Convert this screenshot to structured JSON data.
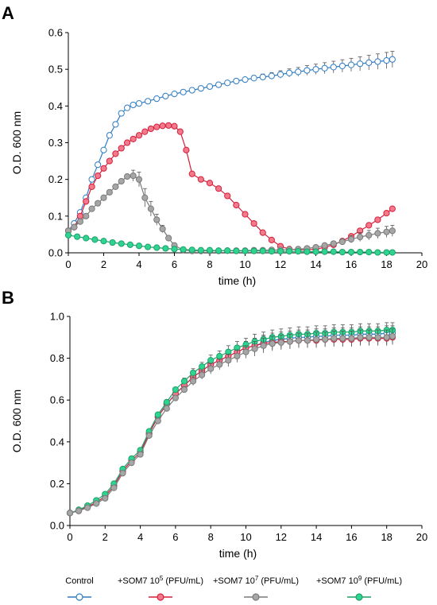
{
  "legend": {
    "items": [
      {
        "label": "Control",
        "series": "control"
      },
      {
        "label": "+SOM7 10",
        "sup": "5",
        "unit": " (PFU/mL)",
        "series": "som7_1e5"
      },
      {
        "label": "+SOM7 10",
        "sup": "7",
        "unit": " (PFU/mL)",
        "series": "som7_1e7"
      },
      {
        "label": "+SOM7 10",
        "sup": "9",
        "unit": " (PFU/mL)",
        "series": "som7_1e9"
      }
    ],
    "placement": "bottom"
  },
  "colors": {
    "control": {
      "stroke": "#2e7bc4",
      "fill": "#ffffff"
    },
    "som7_1e5": {
      "stroke": "#d61f3a",
      "fill": "#f27a8c"
    },
    "som7_1e7": {
      "stroke": "#7a7a7a",
      "fill": "#a6a6a6"
    },
    "som7_1e9": {
      "stroke": "#1ea06a",
      "fill": "#2ed48f"
    }
  },
  "chart_data": [
    {
      "panel": "A",
      "type": "line",
      "xlabel": "time (h)",
      "ylabel": "O.D. 600 nm",
      "xlim": [
        0,
        20
      ],
      "ylim": [
        0,
        0.6
      ],
      "xticks": [
        0,
        2,
        4,
        6,
        8,
        10,
        12,
        14,
        16,
        18,
        20
      ],
      "yticks": [
        0.0,
        0.1,
        0.2,
        0.3,
        0.4,
        0.5,
        0.6
      ],
      "ytick_labels": [
        "0.0",
        "0.1",
        "0.2",
        "0.3",
        "0.4",
        "0.5",
        "0.6"
      ],
      "grid": false,
      "series": [
        {
          "key": "control",
          "x": [
            0,
            0.33,
            0.67,
            1,
            1.33,
            1.67,
            2,
            2.33,
            2.67,
            3,
            3.33,
            3.67,
            4,
            4.5,
            5,
            5.5,
            6,
            6.5,
            7,
            7.5,
            8,
            8.5,
            9,
            9.5,
            10,
            10.5,
            11,
            11.5,
            12,
            12.5,
            13,
            13.5,
            14,
            14.5,
            15,
            15.5,
            16,
            16.5,
            17,
            17.5,
            18,
            18.33
          ],
          "y": [
            0.06,
            0.08,
            0.11,
            0.15,
            0.2,
            0.24,
            0.28,
            0.32,
            0.35,
            0.38,
            0.395,
            0.403,
            0.407,
            0.413,
            0.42,
            0.427,
            0.433,
            0.438,
            0.443,
            0.448,
            0.453,
            0.458,
            0.463,
            0.468,
            0.472,
            0.476,
            0.479,
            0.482,
            0.486,
            0.49,
            0.493,
            0.497,
            0.5,
            0.503,
            0.506,
            0.509,
            0.512,
            0.515,
            0.518,
            0.521,
            0.524,
            0.527
          ],
          "err": [
            0,
            0,
            0,
            0,
            0,
            0,
            0,
            0,
            0,
            0,
            0,
            0,
            0,
            0,
            0,
            0,
            0,
            0,
            0,
            0,
            0,
            0,
            0.004,
            0.005,
            0.006,
            0.007,
            0.008,
            0.009,
            0.01,
            0.011,
            0.012,
            0.013,
            0.014,
            0.015,
            0.016,
            0.017,
            0.018,
            0.019,
            0.02,
            0.021,
            0.022,
            0.022
          ]
        },
        {
          "key": "som7_1e5",
          "x": [
            0,
            0.33,
            0.67,
            1,
            1.33,
            1.67,
            2,
            2.33,
            2.67,
            3,
            3.33,
            3.67,
            4,
            4.33,
            4.67,
            5,
            5.33,
            5.67,
            6,
            6.33,
            6.67,
            7,
            7.5,
            8,
            8.5,
            9,
            9.5,
            10,
            10.5,
            11,
            11.5,
            12,
            12.5,
            13,
            13.5,
            14,
            14.5,
            15,
            15.5,
            16,
            16.5,
            17,
            17.5,
            18,
            18.33
          ],
          "y": [
            0.06,
            0.07,
            0.1,
            0.14,
            0.18,
            0.21,
            0.23,
            0.25,
            0.27,
            0.285,
            0.3,
            0.31,
            0.32,
            0.33,
            0.338,
            0.343,
            0.346,
            0.347,
            0.345,
            0.33,
            0.28,
            0.215,
            0.2,
            0.19,
            0.175,
            0.155,
            0.13,
            0.105,
            0.08,
            0.055,
            0.035,
            0.018,
            0.01,
            0.008,
            0.008,
            0.01,
            0.015,
            0.022,
            0.032,
            0.045,
            0.06,
            0.075,
            0.09,
            0.108,
            0.12
          ],
          "err": [
            0,
            0,
            0,
            0,
            0,
            0,
            0,
            0,
            0,
            0,
            0,
            0,
            0,
            0,
            0,
            0,
            0,
            0,
            0,
            0,
            0,
            0,
            0,
            0,
            0,
            0,
            0,
            0,
            0,
            0,
            0,
            0,
            0,
            0,
            0,
            0,
            0,
            0,
            0,
            0,
            0,
            0,
            0,
            0,
            0
          ]
        },
        {
          "key": "som7_1e7",
          "x": [
            0,
            0.33,
            0.67,
            1,
            1.33,
            1.67,
            2,
            2.33,
            2.67,
            3,
            3.33,
            3.67,
            4,
            4.33,
            4.67,
            5,
            5.33,
            5.67,
            6,
            6.5,
            7,
            7.5,
            8,
            8.5,
            9,
            9.5,
            10,
            10.5,
            11,
            11.5,
            12,
            12.5,
            13,
            13.5,
            14,
            14.5,
            15,
            15.5,
            16,
            16.5,
            17,
            17.5,
            18,
            18.33
          ],
          "y": [
            0.06,
            0.07,
            0.085,
            0.1,
            0.12,
            0.135,
            0.15,
            0.165,
            0.18,
            0.195,
            0.208,
            0.21,
            0.2,
            0.15,
            0.12,
            0.09,
            0.065,
            0.04,
            0.02,
            0.008,
            0.005,
            0.005,
            0.005,
            0.005,
            0.006,
            0.006,
            0.006,
            0.007,
            0.007,
            0.008,
            0.008,
            0.009,
            0.01,
            0.012,
            0.015,
            0.02,
            0.025,
            0.03,
            0.037,
            0.043,
            0.048,
            0.053,
            0.057,
            0.06
          ],
          "err": [
            0,
            0,
            0,
            0,
            0,
            0,
            0,
            0,
            0,
            0,
            0,
            0.015,
            0.02,
            0.025,
            0.02,
            0.015,
            0.01,
            0,
            0,
            0,
            0,
            0,
            0,
            0,
            0,
            0,
            0,
            0,
            0,
            0,
            0,
            0,
            0,
            0,
            0,
            0,
            0.006,
            0.008,
            0.01,
            0.012,
            0.013,
            0.014,
            0.015,
            0.015
          ]
        },
        {
          "key": "som7_1e9",
          "x": [
            0,
            0.5,
            1,
            1.5,
            2,
            2.5,
            3,
            3.5,
            4,
            4.5,
            5,
            5.5,
            6,
            6.5,
            7,
            7.5,
            8,
            8.5,
            9,
            9.5,
            10,
            10.5,
            11,
            11.5,
            12,
            12.5,
            13,
            13.5,
            14,
            14.5,
            15,
            15.5,
            16,
            16.5,
            17,
            17.5,
            18,
            18.33
          ],
          "y": [
            0.048,
            0.044,
            0.04,
            0.036,
            0.032,
            0.028,
            0.025,
            0.022,
            0.019,
            0.016,
            0.014,
            0.012,
            0.01,
            0.009,
            0.008,
            0.007,
            0.007,
            0.006,
            0.006,
            0.005,
            0.005,
            0.005,
            0.005,
            0.004,
            0.004,
            0.004,
            0.004,
            0.003,
            0.003,
            0.003,
            0.003,
            0.002,
            0.002,
            0.002,
            0.002,
            0.001,
            0.001,
            0.001
          ],
          "err": [
            0,
            0,
            0,
            0,
            0,
            0,
            0,
            0,
            0,
            0,
            0,
            0,
            0,
            0,
            0,
            0,
            0,
            0,
            0,
            0,
            0,
            0,
            0,
            0,
            0,
            0,
            0,
            0,
            0,
            0,
            0,
            0,
            0,
            0,
            0,
            0,
            0,
            0
          ]
        }
      ]
    },
    {
      "panel": "B",
      "type": "line",
      "xlabel": "time (h)",
      "ylabel": "O.D. 600 nm",
      "xlim": [
        0,
        20
      ],
      "ylim": [
        0,
        1.0
      ],
      "xticks": [
        0,
        2,
        4,
        6,
        8,
        10,
        12,
        14,
        16,
        18,
        20
      ],
      "yticks": [
        0.0,
        0.2,
        0.4,
        0.6,
        0.8,
        1.0
      ],
      "ytick_labels": [
        "0.0",
        "0.2",
        "0.4",
        "0.6",
        "0.8",
        "1.0"
      ],
      "grid": false,
      "series": [
        {
          "key": "control",
          "x": [
            0,
            0.5,
            1,
            1.5,
            2,
            2.5,
            3,
            3.5,
            4,
            4.5,
            5,
            5.5,
            6,
            6.5,
            7,
            7.5,
            8,
            8.5,
            9,
            9.5,
            10,
            10.5,
            11,
            11.5,
            12,
            12.5,
            13,
            13.5,
            14,
            14.5,
            15,
            15.5,
            16,
            16.5,
            17,
            17.5,
            18,
            18.33
          ],
          "y": [
            0.06,
            0.07,
            0.09,
            0.11,
            0.14,
            0.19,
            0.26,
            0.31,
            0.35,
            0.44,
            0.52,
            0.58,
            0.63,
            0.67,
            0.71,
            0.74,
            0.77,
            0.79,
            0.81,
            0.83,
            0.85,
            0.86,
            0.875,
            0.885,
            0.89,
            0.895,
            0.9,
            0.9,
            0.905,
            0.905,
            0.91,
            0.91,
            0.91,
            0.915,
            0.915,
            0.915,
            0.92,
            0.92
          ],
          "err": [
            0,
            0,
            0,
            0,
            0,
            0,
            0,
            0,
            0,
            0,
            0,
            0,
            0.01,
            0.015,
            0.02,
            0.02,
            0.025,
            0.025,
            0.03,
            0.03,
            0.03,
            0.035,
            0.035,
            0.035,
            0.035,
            0.035,
            0.035,
            0.035,
            0.035,
            0.035,
            0.035,
            0.035,
            0.035,
            0.035,
            0.035,
            0.035,
            0.035,
            0.035
          ]
        },
        {
          "key": "som7_1e5",
          "x": [
            0,
            0.5,
            1,
            1.5,
            2,
            2.5,
            3,
            3.5,
            4,
            4.5,
            5,
            5.5,
            6,
            6.5,
            7,
            7.5,
            8,
            8.5,
            9,
            9.5,
            10,
            10.5,
            11,
            11.5,
            12,
            12.5,
            13,
            13.5,
            14,
            14.5,
            15,
            15.5,
            16,
            16.5,
            17,
            17.5,
            18,
            18.33
          ],
          "y": [
            0.06,
            0.07,
            0.09,
            0.11,
            0.14,
            0.19,
            0.26,
            0.31,
            0.35,
            0.44,
            0.52,
            0.58,
            0.63,
            0.67,
            0.71,
            0.74,
            0.77,
            0.79,
            0.81,
            0.83,
            0.85,
            0.86,
            0.87,
            0.875,
            0.88,
            0.88,
            0.885,
            0.885,
            0.885,
            0.89,
            0.89,
            0.89,
            0.89,
            0.895,
            0.895,
            0.895,
            0.895,
            0.9
          ],
          "err": [
            0,
            0,
            0,
            0,
            0,
            0,
            0,
            0,
            0,
            0,
            0,
            0,
            0.01,
            0.015,
            0.02,
            0.02,
            0.025,
            0.025,
            0.03,
            0.03,
            0.03,
            0.035,
            0.035,
            0.035,
            0.035,
            0.035,
            0.035,
            0.035,
            0.035,
            0.035,
            0.035,
            0.035,
            0.035,
            0.035,
            0.035,
            0.035,
            0.035,
            0.035
          ]
        },
        {
          "key": "som7_1e9",
          "x": [
            0,
            0.5,
            1,
            1.5,
            2,
            2.5,
            3,
            3.5,
            4,
            4.5,
            5,
            5.5,
            6,
            6.5,
            7,
            7.5,
            8,
            8.5,
            9,
            9.5,
            10,
            10.5,
            11,
            11.5,
            12,
            12.5,
            13,
            13.5,
            14,
            14.5,
            15,
            15.5,
            16,
            16.5,
            17,
            17.5,
            18,
            18.33
          ],
          "y": [
            0.06,
            0.075,
            0.095,
            0.12,
            0.15,
            0.2,
            0.27,
            0.32,
            0.36,
            0.45,
            0.53,
            0.59,
            0.65,
            0.69,
            0.73,
            0.76,
            0.79,
            0.81,
            0.83,
            0.85,
            0.865,
            0.88,
            0.89,
            0.9,
            0.905,
            0.91,
            0.915,
            0.915,
            0.92,
            0.92,
            0.925,
            0.925,
            0.925,
            0.93,
            0.93,
            0.93,
            0.935,
            0.935
          ],
          "err": [
            0,
            0,
            0,
            0,
            0,
            0,
            0,
            0,
            0,
            0,
            0,
            0,
            0.01,
            0.015,
            0.02,
            0.02,
            0.025,
            0.025,
            0.03,
            0.03,
            0.03,
            0.035,
            0.035,
            0.035,
            0.035,
            0.035,
            0.035,
            0.035,
            0.035,
            0.035,
            0.035,
            0.035,
            0.035,
            0.035,
            0.035,
            0.035,
            0.035,
            0.035
          ]
        },
        {
          "key": "som7_1e7",
          "x": [
            0,
            0.5,
            1,
            1.5,
            2,
            2.5,
            3,
            3.5,
            4,
            4.5,
            5,
            5.5,
            6,
            6.5,
            7,
            7.5,
            8,
            8.5,
            9,
            9.5,
            10,
            10.5,
            11,
            11.5,
            12,
            12.5,
            13,
            13.5,
            14,
            14.5,
            15,
            15.5,
            16,
            16.5,
            17,
            17.5,
            18,
            18.33
          ],
          "y": [
            0.06,
            0.07,
            0.085,
            0.105,
            0.13,
            0.18,
            0.25,
            0.3,
            0.34,
            0.43,
            0.5,
            0.56,
            0.61,
            0.65,
            0.69,
            0.72,
            0.75,
            0.77,
            0.79,
            0.81,
            0.83,
            0.845,
            0.86,
            0.87,
            0.875,
            0.88,
            0.885,
            0.885,
            0.89,
            0.89,
            0.895,
            0.895,
            0.895,
            0.9,
            0.9,
            0.9,
            0.9,
            0.905
          ],
          "err": [
            0,
            0,
            0,
            0,
            0,
            0,
            0,
            0,
            0,
            0,
            0,
            0,
            0.01,
            0.015,
            0.02,
            0.02,
            0.025,
            0.025,
            0.03,
            0.03,
            0.03,
            0.035,
            0.035,
            0.035,
            0.035,
            0.035,
            0.035,
            0.035,
            0.035,
            0.035,
            0.035,
            0.035,
            0.035,
            0.035,
            0.035,
            0.035,
            0.035,
            0.035
          ]
        }
      ]
    }
  ],
  "panels": {
    "A": {
      "letter": "A"
    },
    "B": {
      "letter": "B"
    }
  }
}
